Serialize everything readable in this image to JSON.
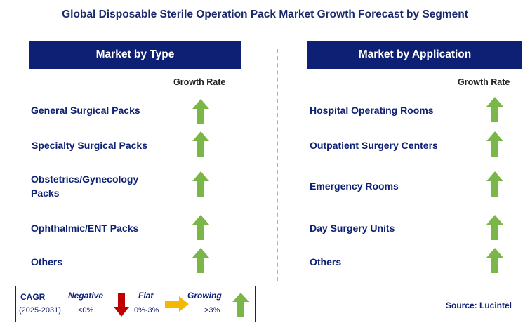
{
  "title": "Global Disposable Sterile Operation Pack Market Growth Forecast by Segment",
  "left": {
    "header": "Market by Type",
    "growth_label": "Growth Rate",
    "items": [
      {
        "label": "General Surgical Packs",
        "trend": "growing"
      },
      {
        "label": "Specialty Surgical Packs",
        "trend": "growing"
      },
      {
        "label": "Obstetrics/Gynecology Packs",
        "trend": "growing"
      },
      {
        "label": "Ophthalmic/ENT Packs",
        "trend": "growing"
      },
      {
        "label": "Others",
        "trend": "growing"
      }
    ]
  },
  "right": {
    "header": "Market by Application",
    "growth_label": "Growth Rate",
    "items": [
      {
        "label": "Hospital Operating Rooms",
        "trend": "growing"
      },
      {
        "label": "Outpatient Surgery Centers",
        "trend": "growing"
      },
      {
        "label": "Emergency Rooms",
        "trend": "growing"
      },
      {
        "label": "Day Surgery Units",
        "trend": "growing"
      },
      {
        "label": "Others",
        "trend": "growing"
      }
    ]
  },
  "legend": {
    "cagr": "CAGR",
    "period": "(2025-2031)",
    "negative": "Negative",
    "negative_range": "<0%",
    "flat": "Flat",
    "flat_range": "0%-3%",
    "growing": "Growing",
    "growing_range": ">3%"
  },
  "source": "Source: Lucintel",
  "colors": {
    "navy": "#0e2074",
    "green": "#7ab648",
    "red": "#c00000",
    "yellow": "#f5b800"
  }
}
